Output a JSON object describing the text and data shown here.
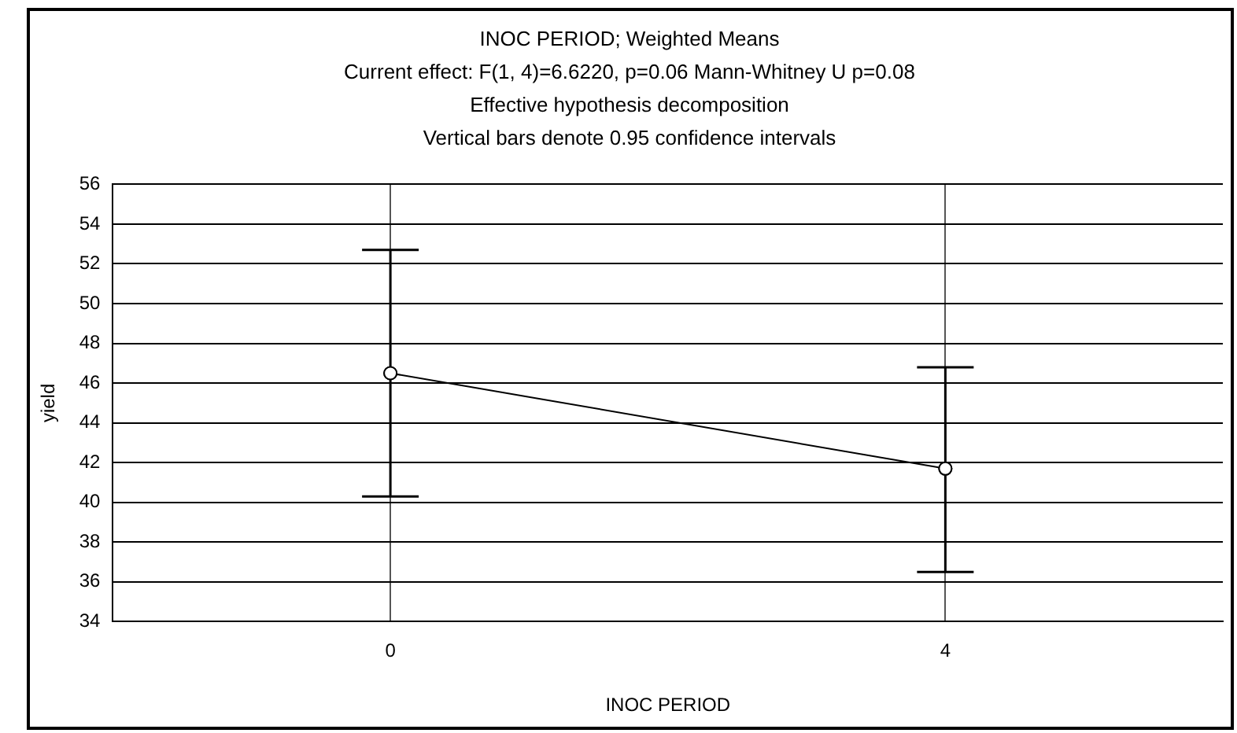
{
  "chart_data": {
    "type": "line",
    "title": "INOC PERIOD; Weighted Means",
    "subtitle": "Current effect: F(1, 4)=6.6220, p=0.06 Mann-Whitney U p=0.08",
    "annotations": [
      "Effective hypothesis decomposition",
      "Vertical bars denote 0.95 confidence intervals"
    ],
    "xlabel": "INOC PERIOD",
    "ylabel": "yield",
    "categories": [
      "0",
      "4"
    ],
    "series": [
      {
        "color": "#000000",
        "values": [
          46.5,
          41.7
        ],
        "errors": [
          [
            40.3,
            52.7
          ],
          [
            36.5,
            46.8
          ]
        ]
      }
    ],
    "ylim": [
      34,
      56
    ],
    "yticks": [
      34,
      36,
      38,
      40,
      42,
      44,
      46,
      48,
      50,
      52,
      54,
      56
    ],
    "grid": true,
    "marker": "circle",
    "line_style": "solid",
    "legend": false
  }
}
